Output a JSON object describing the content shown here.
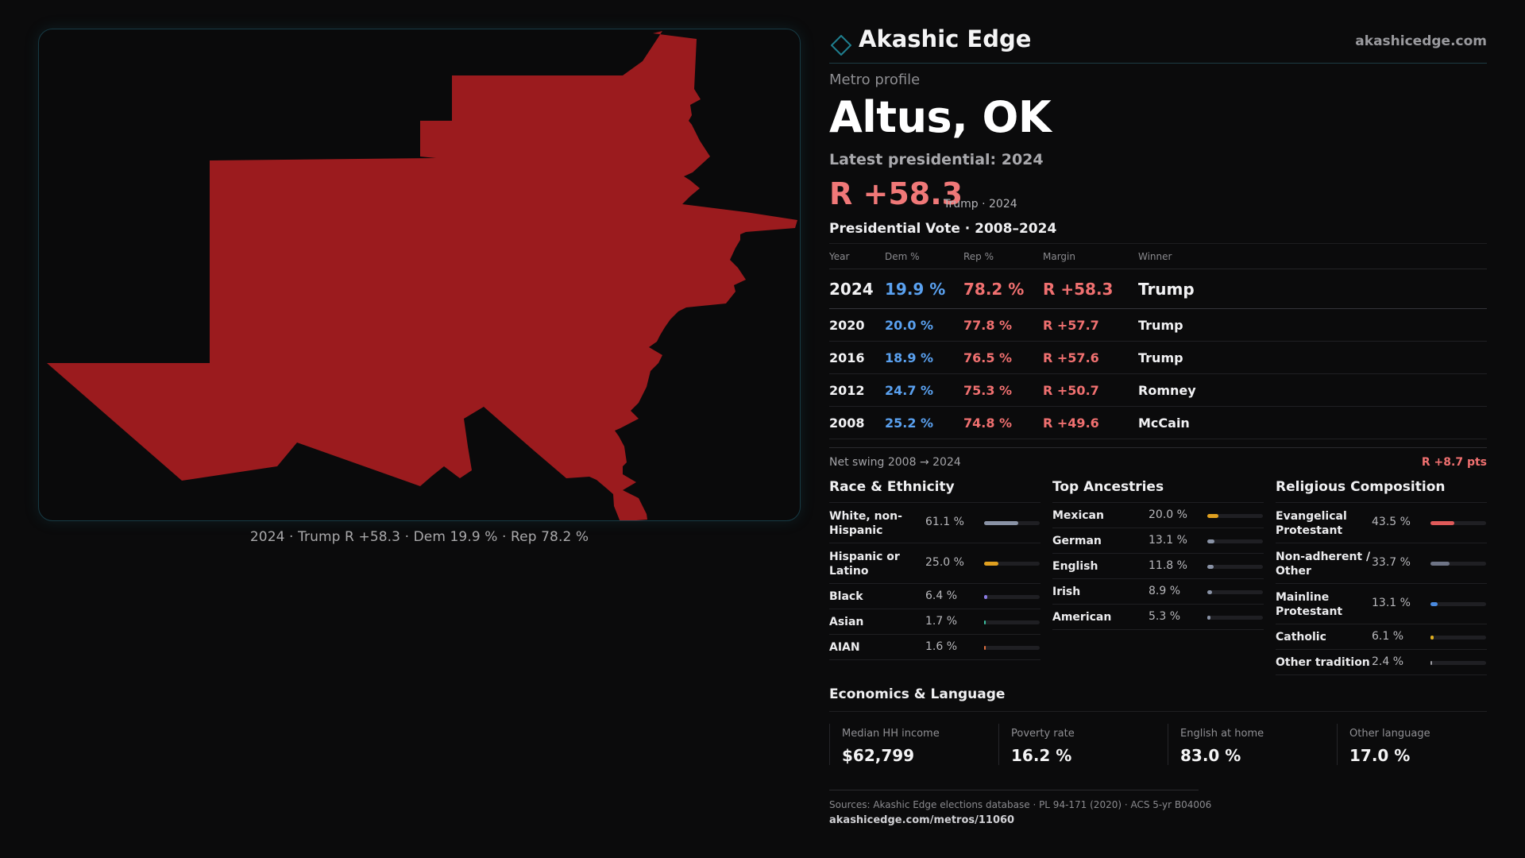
{
  "brand": {
    "name": "Akashic Edge",
    "url": "akashicedge.com"
  },
  "map": {
    "fill_color": "#9b1b1e",
    "caption": "2024 · Trump R +58.3 · Dem 19.9 % · Rep 78.2 %"
  },
  "profile": {
    "label": "Metro profile",
    "name": "Altus, OK",
    "latest_label": "Latest presidential: 2024",
    "margin": "R +58.3",
    "margin_sub": "Trump · 2024"
  },
  "votes": {
    "title": "Presidential Vote · 2008–2024",
    "headers": [
      "Year",
      "Dem %",
      "Rep %",
      "Margin",
      "Winner"
    ],
    "rows": [
      {
        "year": "2024",
        "dem": "19.9 %",
        "rep": "78.2 %",
        "margin": "R +58.3",
        "winner": "Trump"
      },
      {
        "year": "2020",
        "dem": "20.0 %",
        "rep": "77.8 %",
        "margin": "R +57.7",
        "winner": "Trump"
      },
      {
        "year": "2016",
        "dem": "18.9 %",
        "rep": "76.5 %",
        "margin": "R +57.6",
        "winner": "Trump"
      },
      {
        "year": "2012",
        "dem": "24.7 %",
        "rep": "75.3 %",
        "margin": "R +50.7",
        "winner": "Romney"
      },
      {
        "year": "2008",
        "dem": "25.2 %",
        "rep": "74.8 %",
        "margin": "R +49.6",
        "winner": "McCain"
      }
    ],
    "swing_label": "Net swing 2008 → 2024",
    "swing_value": "R +8.7 pts"
  },
  "race": {
    "title": "Race & Ethnicity",
    "items": [
      {
        "name": "White, non-Hispanic",
        "pct": "61.1 %",
        "value": 61.1,
        "color": "#8a93a6"
      },
      {
        "name": "Hispanic or Latino",
        "pct": "25.0 %",
        "value": 25.0,
        "color": "#e0a020"
      },
      {
        "name": "Black",
        "pct": "6.4 %",
        "value": 6.4,
        "color": "#8a7ae0"
      },
      {
        "name": "Asian",
        "pct": "1.7 %",
        "value": 1.7,
        "color": "#3cc0a0"
      },
      {
        "name": "AIAN",
        "pct": "1.6 %",
        "value": 1.6,
        "color": "#e07040"
      }
    ]
  },
  "ancestry": {
    "title": "Top Ancestries",
    "items": [
      {
        "name": "Mexican",
        "pct": "20.0 %",
        "value": 20.0,
        "color": "#e0a020"
      },
      {
        "name": "German",
        "pct": "13.1 %",
        "value": 13.1,
        "color": "#8a93a6"
      },
      {
        "name": "English",
        "pct": "11.8 %",
        "value": 11.8,
        "color": "#8a93a6"
      },
      {
        "name": "Irish",
        "pct": "8.9 %",
        "value": 8.9,
        "color": "#8a93a6"
      },
      {
        "name": "American",
        "pct": "5.3 %",
        "value": 5.3,
        "color": "#8a93a6"
      }
    ]
  },
  "religion": {
    "title": "Religious Composition",
    "items": [
      {
        "name": "Evangelical Protestant",
        "pct": "43.5 %",
        "value": 43.5,
        "color": "#e05a5a"
      },
      {
        "name": "Non-adherent / Other",
        "pct": "33.7 %",
        "value": 33.7,
        "color": "#6e7486"
      },
      {
        "name": "Mainline Protestant",
        "pct": "13.1 %",
        "value": 13.1,
        "color": "#4a8ae0"
      },
      {
        "name": "Catholic",
        "pct": "6.1 %",
        "value": 6.1,
        "color": "#e0b020"
      },
      {
        "name": "Other tradition",
        "pct": "2.4 %",
        "value": 2.4,
        "color": "#9a9aa0"
      }
    ]
  },
  "economics": {
    "title": "Economics & Language",
    "items": [
      {
        "label": "Median HH income",
        "value": "$62,799"
      },
      {
        "label": "Poverty rate",
        "value": "16.2 %"
      },
      {
        "label": "English at home",
        "value": "83.0 %"
      },
      {
        "label": "Other language",
        "value": "17.0 %"
      }
    ]
  },
  "footer": {
    "sources": "Sources: Akashic Edge elections database · PL 94-171 (2020) · ACS 5-yr B04006",
    "url": "akashicedge.com/metros/11060"
  }
}
